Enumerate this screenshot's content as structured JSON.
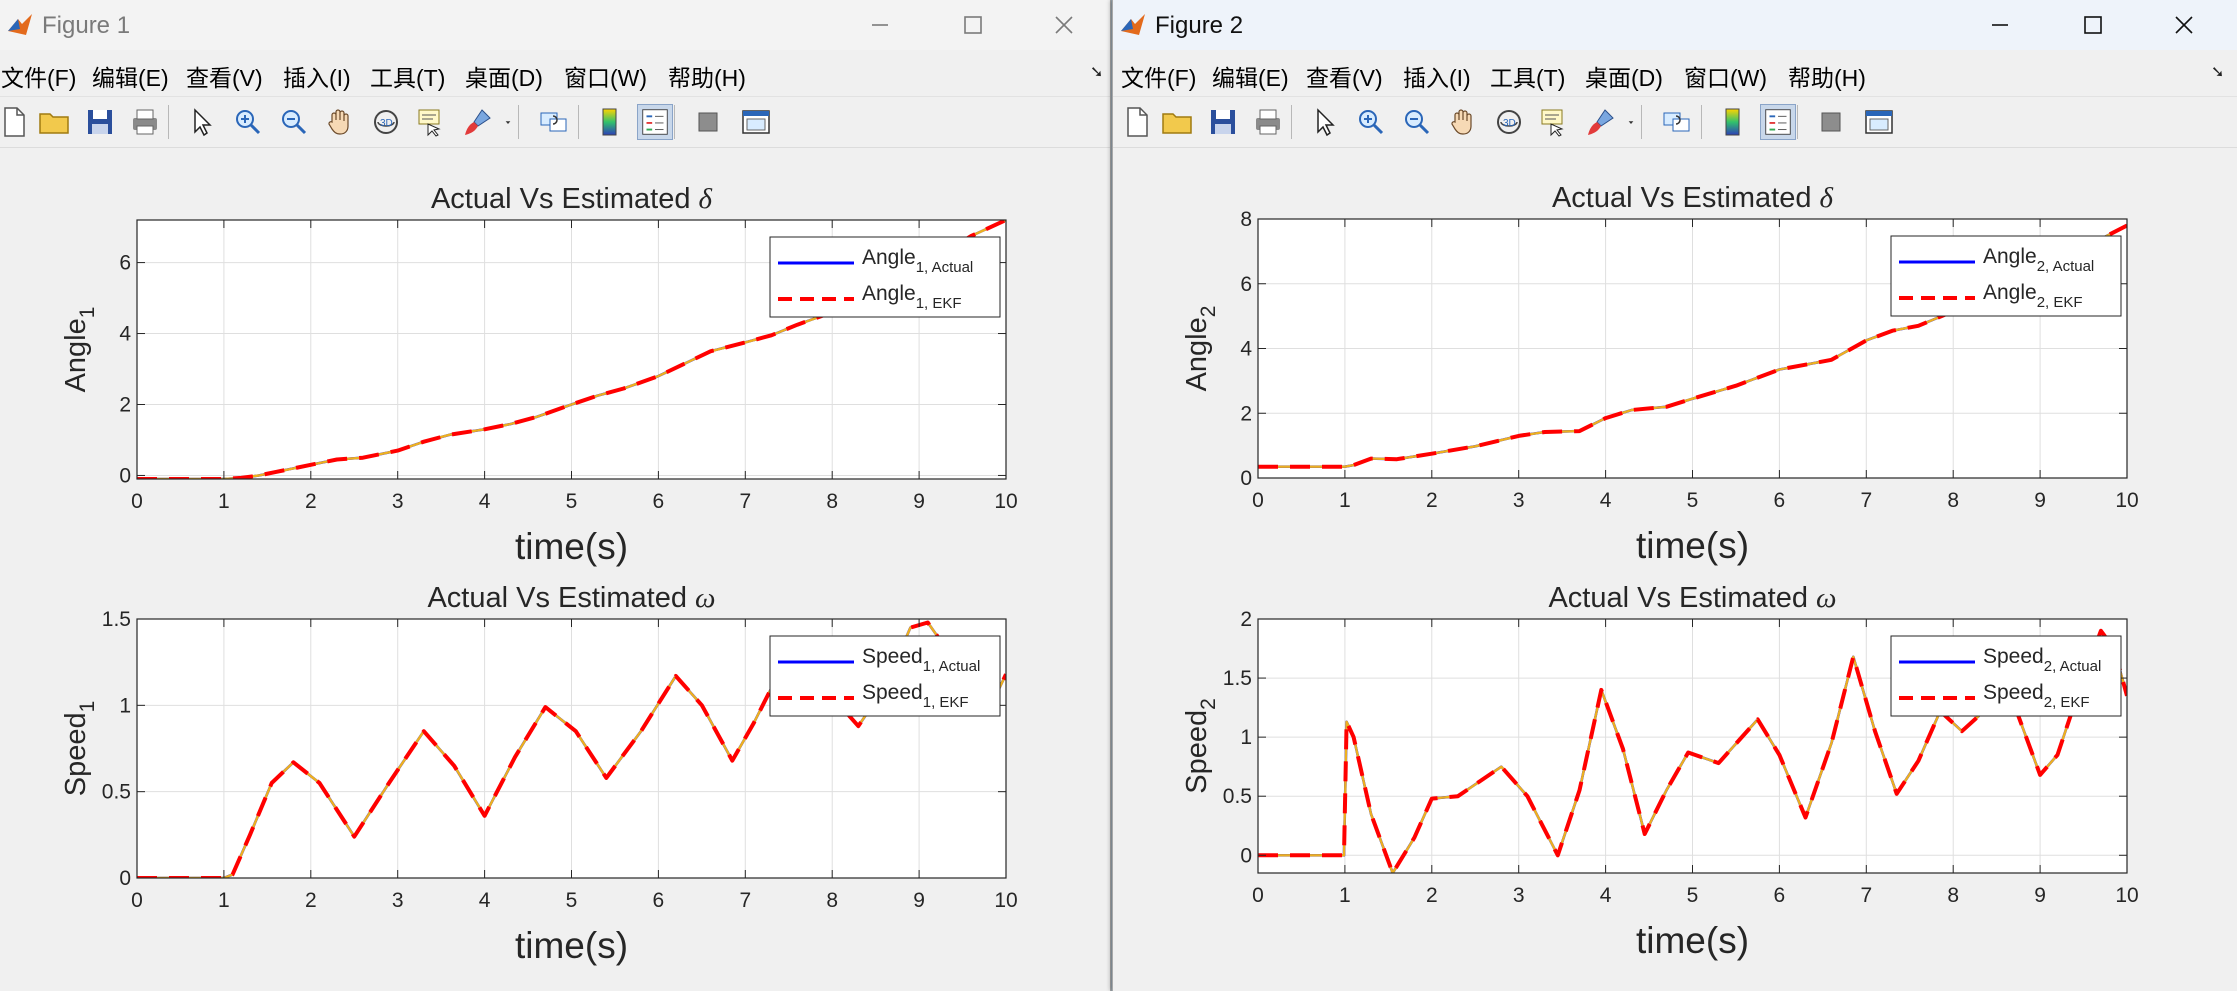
{
  "windows": [
    {
      "id": "fig1",
      "title": "Figure 1",
      "menu": [
        "文件(F)",
        "编辑(E)",
        "查看(V)",
        "插入(I)",
        "工具(T)",
        "桌面(D)",
        "窗口(W)",
        "帮助(H)"
      ]
    },
    {
      "id": "fig2",
      "title": "Figure 2",
      "menu": [
        "文件(F)",
        "编辑(E)",
        "查看(V)",
        "插入(I)",
        "工具(T)",
        "桌面(D)",
        "窗口(W)",
        "帮助(H)"
      ]
    }
  ],
  "toolbar_icons": [
    "new-file-icon",
    "open-folder-icon",
    "save-icon",
    "print-icon",
    "select-arrow-icon",
    "zoom-in-icon",
    "zoom-out-icon",
    "pan-hand-icon",
    "rotate-3d-icon",
    "data-tips-icon",
    "brush-icon",
    "brush-dropdown-icon",
    "link-plot-icon",
    "colorbar-icon",
    "legend-icon",
    "hide-plot-tools-icon",
    "show-plot-tools-icon"
  ],
  "colors": {
    "actual": "#0000ff",
    "ekf": "#ff0000",
    "overlay": "#edb120",
    "axis": "#262626",
    "grid": "#dfdfdf"
  },
  "chart_data": [
    {
      "figure": "Figure 1",
      "panel": "top",
      "type": "line",
      "title": "Actual Vs Estimated",
      "title_symbol": "δ",
      "xlabel": "time(s)",
      "ylabel": "Angle",
      "ylabel_sub": "1",
      "xlim": [
        0,
        10
      ],
      "ylim": [
        -0.1,
        7.2
      ],
      "xticks": [
        0,
        1,
        2,
        3,
        4,
        5,
        6,
        7,
        8,
        9,
        10
      ],
      "yticks": [
        0,
        2,
        4,
        6
      ],
      "grid": true,
      "legend_position": "top-right",
      "x": [
        0,
        0.5,
        1,
        1.2,
        1.4,
        1.6,
        1.8,
        2,
        2.3,
        2.6,
        3,
        3.3,
        3.6,
        4,
        4.3,
        4.6,
        5,
        5.3,
        5.6,
        6,
        6.3,
        6.6,
        7,
        7.3,
        7.6,
        8,
        8.3,
        8.6,
        9,
        9.3,
        9.6,
        10
      ],
      "series": [
        {
          "name": "Angle",
          "name_sub": "1, Actual",
          "style": "solid",
          "values": [
            -0.1,
            -0.1,
            -0.1,
            -0.07,
            0.0,
            0.1,
            0.2,
            0.3,
            0.45,
            0.5,
            0.7,
            0.95,
            1.15,
            1.3,
            1.45,
            1.65,
            2.0,
            2.25,
            2.45,
            2.8,
            3.15,
            3.5,
            3.75,
            3.95,
            4.25,
            4.6,
            4.9,
            5.3,
            5.8,
            6.3,
            6.75,
            7.2
          ]
        },
        {
          "name": "Angle",
          "name_sub": "1, EKF",
          "style": "dashed",
          "values": [
            -0.1,
            -0.1,
            -0.1,
            -0.07,
            0.0,
            0.1,
            0.2,
            0.3,
            0.45,
            0.5,
            0.7,
            0.95,
            1.15,
            1.3,
            1.45,
            1.65,
            2.0,
            2.25,
            2.45,
            2.8,
            3.15,
            3.5,
            3.75,
            3.95,
            4.25,
            4.6,
            4.9,
            5.3,
            5.8,
            6.3,
            6.75,
            7.2
          ]
        }
      ]
    },
    {
      "figure": "Figure 1",
      "panel": "bottom",
      "type": "line",
      "title": "Actual Vs Estimated",
      "title_symbol": "ω",
      "xlabel": "time(s)",
      "ylabel": "Speed",
      "ylabel_sub": "1",
      "xlim": [
        0,
        10
      ],
      "ylim": [
        0,
        1.5
      ],
      "xticks": [
        0,
        1,
        2,
        3,
        4,
        5,
        6,
        7,
        8,
        9,
        10
      ],
      "yticks": [
        0,
        0.5,
        1,
        1.5
      ],
      "grid": true,
      "legend_position": "top-right",
      "x": [
        0,
        0.5,
        1,
        1.1,
        1.3,
        1.55,
        1.8,
        2.1,
        2.5,
        2.9,
        3.3,
        3.65,
        4,
        4.35,
        4.7,
        5.05,
        5.4,
        5.8,
        6.2,
        6.5,
        6.85,
        7.1,
        7.4,
        7.75,
        8.0,
        8.3,
        8.6,
        8.9,
        9.1,
        9.35,
        9.6,
        9.8,
        10
      ],
      "series": [
        {
          "name": "Speed",
          "name_sub": "1, Actual",
          "style": "solid",
          "values": [
            0,
            0,
            0,
            0.02,
            0.25,
            0.55,
            0.67,
            0.55,
            0.24,
            0.55,
            0.85,
            0.65,
            0.36,
            0.7,
            0.99,
            0.85,
            0.58,
            0.85,
            1.17,
            1.0,
            0.68,
            0.9,
            1.2,
            1.15,
            1.05,
            0.88,
            1.1,
            1.45,
            1.48,
            1.3,
            1.05,
            0.97,
            1.18
          ]
        },
        {
          "name": "Speed",
          "name_sub": "1, EKF",
          "style": "dashed",
          "values": [
            0,
            0,
            0,
            0.02,
            0.25,
            0.55,
            0.67,
            0.55,
            0.24,
            0.55,
            0.85,
            0.65,
            0.36,
            0.7,
            0.99,
            0.85,
            0.58,
            0.85,
            1.17,
            1.0,
            0.68,
            0.9,
            1.2,
            1.15,
            1.05,
            0.88,
            1.1,
            1.45,
            1.48,
            1.3,
            1.05,
            0.97,
            1.18
          ]
        }
      ]
    },
    {
      "figure": "Figure 2",
      "panel": "top",
      "type": "line",
      "title": "Actual Vs Estimated",
      "title_symbol": "δ",
      "xlabel": "time(s)",
      "ylabel": "Angle",
      "ylabel_sub": "2",
      "xlim": [
        0,
        10
      ],
      "ylim": [
        0,
        8
      ],
      "xticks": [
        0,
        1,
        2,
        3,
        4,
        5,
        6,
        7,
        8,
        9,
        10
      ],
      "yticks": [
        0,
        2,
        4,
        6,
        8
      ],
      "grid": true,
      "legend_position": "top-right",
      "x": [
        0,
        0.5,
        1,
        1.1,
        1.3,
        1.6,
        2,
        2.5,
        3,
        3.3,
        3.7,
        4,
        4.3,
        4.7,
        5,
        5.5,
        6,
        6.3,
        6.6,
        7,
        7.3,
        7.6,
        8,
        8.3,
        8.6,
        9,
        9.3,
        9.6,
        10
      ],
      "series": [
        {
          "name": "Angle",
          "name_sub": "2, Actual",
          "style": "solid",
          "values": [
            0.35,
            0.35,
            0.35,
            0.4,
            0.6,
            0.58,
            0.75,
            0.98,
            1.3,
            1.42,
            1.45,
            1.85,
            2.1,
            2.2,
            2.45,
            2.85,
            3.35,
            3.5,
            3.65,
            4.25,
            4.55,
            4.7,
            5.15,
            5.45,
            5.75,
            6.2,
            6.75,
            7.25,
            7.8
          ]
        },
        {
          "name": "Angle",
          "name_sub": "2, EKF",
          "style": "dashed",
          "values": [
            0.35,
            0.35,
            0.35,
            0.4,
            0.6,
            0.58,
            0.75,
            0.98,
            1.3,
            1.42,
            1.45,
            1.85,
            2.1,
            2.2,
            2.45,
            2.85,
            3.35,
            3.5,
            3.65,
            4.25,
            4.55,
            4.7,
            5.15,
            5.45,
            5.75,
            6.2,
            6.75,
            7.25,
            7.8
          ]
        }
      ]
    },
    {
      "figure": "Figure 2",
      "panel": "bottom",
      "type": "line",
      "title": "Actual Vs Estimated",
      "title_symbol": "ω",
      "xlabel": "time(s)",
      "ylabel": "Speed",
      "ylabel_sub": "2",
      "xlim": [
        0,
        10
      ],
      "ylim": [
        -0.15,
        2
      ],
      "xticks": [
        0,
        1,
        2,
        3,
        4,
        5,
        6,
        7,
        8,
        9,
        10
      ],
      "yticks": [
        0,
        0.5,
        1,
        1.5,
        2
      ],
      "grid": true,
      "legend_position": "top-right",
      "x": [
        0,
        0.5,
        0.99,
        1.02,
        1.1,
        1.3,
        1.55,
        1.8,
        2.0,
        2.3,
        2.8,
        3.1,
        3.45,
        3.7,
        3.95,
        4.2,
        4.45,
        4.7,
        4.95,
        5.3,
        5.75,
        6.0,
        6.3,
        6.6,
        6.85,
        7.1,
        7.35,
        7.6,
        7.85,
        8.1,
        8.4,
        8.7,
        9.0,
        9.2,
        9.45,
        9.7,
        9.85,
        10
      ],
      "series": [
        {
          "name": "Speed",
          "name_sub": "2, Actual",
          "style": "solid",
          "values": [
            0,
            0,
            0,
            1.13,
            1.0,
            0.35,
            -0.15,
            0.15,
            0.48,
            0.5,
            0.75,
            0.5,
            0.0,
            0.55,
            1.4,
            0.9,
            0.18,
            0.55,
            0.87,
            0.78,
            1.15,
            0.85,
            0.32,
            0.95,
            1.68,
            1.05,
            0.52,
            0.8,
            1.22,
            1.05,
            1.25,
            1.28,
            0.68,
            0.85,
            1.4,
            1.9,
            1.75,
            1.35
          ]
        },
        {
          "name": "Speed",
          "name_sub": "2, EKF",
          "style": "dashed",
          "values": [
            0,
            0,
            0,
            1.13,
            1.0,
            0.35,
            -0.15,
            0.15,
            0.48,
            0.5,
            0.75,
            0.5,
            0.0,
            0.55,
            1.4,
            0.9,
            0.18,
            0.55,
            0.87,
            0.78,
            1.15,
            0.85,
            0.32,
            0.95,
            1.68,
            1.05,
            0.52,
            0.8,
            1.22,
            1.05,
            1.25,
            1.28,
            0.68,
            0.85,
            1.4,
            1.9,
            1.75,
            1.35
          ]
        }
      ]
    }
  ]
}
